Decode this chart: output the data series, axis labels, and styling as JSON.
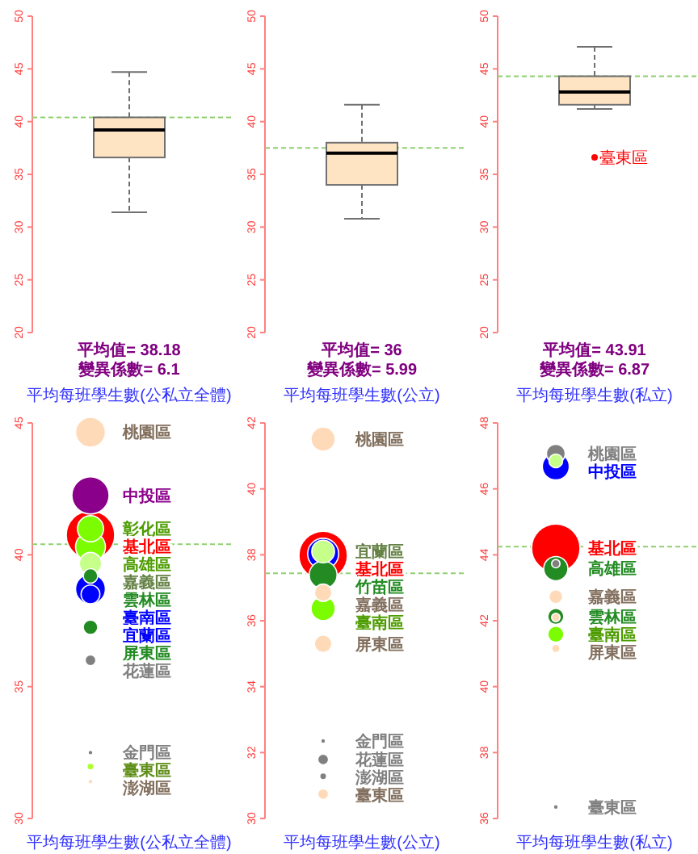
{
  "chart_data": [
    {
      "type": "box",
      "categories": [
        null
      ],
      "series": [
        {
          "color": "#ffe4c4",
          "boxes": [
            {
              "low": 31.4,
              "q1": 36.6,
              "median": 39.2,
              "q3": 40.4,
              "high": 44.7
            }
          ]
        }
      ],
      "ylim": [
        20,
        50
      ],
      "yticks": [
        20,
        25,
        30,
        35,
        40,
        45,
        50
      ],
      "ref_lines": [
        {
          "axis": "y",
          "value": 40.4,
          "color": "#90d070",
          "line_style": "dashed"
        }
      ],
      "annotations": [
        "平均值= 38.18",
        "變異係數= 6.1"
      ],
      "xlabel": "平均每班學生數(公私立全體)"
    },
    {
      "type": "box",
      "categories": [
        null
      ],
      "series": [
        {
          "color": "#ffe4c4",
          "boxes": [
            {
              "low": 30.8,
              "q1": 34.0,
              "median": 37.0,
              "q3": 38.0,
              "high": 41.6
            }
          ]
        }
      ],
      "ylim": [
        20,
        50
      ],
      "yticks": [
        20,
        25,
        30,
        35,
        40,
        45,
        50
      ],
      "ref_lines": [
        {
          "axis": "y",
          "value": 37.5,
          "color": "#90d070",
          "line_style": "dashed"
        }
      ],
      "annotations": [
        "平均值= 36",
        "變異係數= 5.99"
      ],
      "xlabel": "平均每班學生數(公立)"
    },
    {
      "type": "box",
      "categories": [
        null
      ],
      "series": [
        {
          "color": "#ffe4c4",
          "boxes": [
            {
              "low": 41.2,
              "q1": 41.6,
              "median": 42.8,
              "q3": 44.3,
              "high": 47.1
            }
          ]
        },
        {
          "type": "scatter",
          "name": "臺東區",
          "color": "#ff0000",
          "values": [
            36.6
          ]
        }
      ],
      "ylim": [
        20,
        50
      ],
      "yticks": [
        20,
        25,
        30,
        35,
        40,
        45,
        50
      ],
      "ref_lines": [
        {
          "axis": "y",
          "value": 44.3,
          "color": "#90d070",
          "line_style": "dashed"
        }
      ],
      "annotations": [
        "平均值= 43.91",
        "變異係數= 6.87"
      ],
      "xlabel": "平均每班學生數(私立)"
    },
    {
      "type": "bubble",
      "categories": [
        null
      ],
      "series": [
        {
          "name": "桃園區",
          "color": "#ffdab9",
          "values": [
            44.65
          ],
          "sizes": [
            0.38
          ]
        },
        {
          "name": "中投區",
          "color": "#8b008b",
          "values": [
            42.25
          ],
          "sizes": [
            0.59
          ]
        },
        {
          "name": "彰化區",
          "color": "#7cfc00",
          "values": [
            40.99
          ],
          "sizes": [
            0.29
          ]
        },
        {
          "name": "基北區",
          "color": "#ff0000",
          "values": [
            40.75
          ],
          "sizes": [
            1
          ]
        },
        {
          "name": "高雄區",
          "color": "#7cfc00",
          "values": [
            40.3
          ],
          "sizes": [
            0.38
          ]
        },
        {
          "name": "嘉義區",
          "color": "#c6ff8a",
          "values": [
            39.67
          ],
          "sizes": [
            0.21
          ]
        },
        {
          "name": "雲林區",
          "color": "#228b22",
          "values": [
            39.2
          ],
          "sizes": [
            0.09
          ]
        },
        {
          "name": "臺南區",
          "color": "#0000ff",
          "values": [
            38.7
          ],
          "sizes": [
            0.38
          ]
        },
        {
          "name": "宜蘭區",
          "color": "#0000ff",
          "values": [
            38.5
          ],
          "sizes": [
            0.15
          ]
        },
        {
          "name": "屏東區",
          "color": "#228b22",
          "values": [
            37.25
          ],
          "sizes": [
            0.09
          ]
        },
        {
          "name": "花蓮區",
          "color": "#808080",
          "values": [
            36.0
          ],
          "sizes": [
            0.05
          ]
        },
        {
          "name": "金門區",
          "color": "#808080",
          "values": [
            32.5
          ],
          "sizes": [
            0.01
          ]
        },
        {
          "name": "臺東區",
          "color": "#adff2f",
          "values": [
            31.97
          ],
          "sizes": [
            0.02
          ]
        },
        {
          "name": "澎湖區",
          "color": "#ffdab9",
          "values": [
            31.4
          ],
          "sizes": [
            0.01
          ]
        }
      ],
      "ylim": [
        30,
        45
      ],
      "yticks": [
        30,
        35,
        40,
        45
      ],
      "ref_lines": [
        {
          "axis": "y",
          "value": 40.4,
          "color": "#90d070",
          "line_style": "dashed"
        }
      ],
      "xlabel": "平均每班學生數(公私立全體)"
    },
    {
      "type": "bubble",
      "categories": [
        null
      ],
      "series": [
        {
          "name": "桃園區",
          "color": "#ffdab9",
          "values": [
            41.51
          ],
          "sizes": [
            0.25
          ]
        },
        {
          "name": "基北區",
          "color": "#ff0000",
          "values": [
            37.98
          ],
          "sizes": [
            1
          ]
        },
        {
          "color": "#0000ff",
          "values": [
            38.03
          ],
          "sizes": [
            0.41
          ]
        },
        {
          "name": "宜蘭區",
          "color": "#c6ff8a",
          "values": [
            38.1
          ],
          "sizes": [
            0.22
          ]
        },
        {
          "name": "竹苗區",
          "color": "#228b22",
          "values": [
            37.39
          ],
          "sizes": [
            0.33
          ]
        },
        {
          "name": "嘉義區",
          "color": "#ffdab9",
          "values": [
            36.85
          ],
          "sizes": [
            0.13
          ]
        },
        {
          "name": "臺南區",
          "color": "#7cfc00",
          "values": [
            36.37
          ],
          "sizes": [
            0.25
          ]
        },
        {
          "name": "屏東區",
          "color": "#ffdab9",
          "values": [
            35.3
          ],
          "sizes": [
            0.13
          ]
        },
        {
          "name": "金門區",
          "color": "#808080",
          "values": [
            32.35
          ],
          "sizes": [
            0.01
          ]
        },
        {
          "name": "花蓮區",
          "color": "#808080",
          "values": [
            31.79
          ],
          "sizes": [
            0.05
          ]
        },
        {
          "name": "澎湖區",
          "color": "#808080",
          "values": [
            31.28
          ],
          "sizes": [
            0.02
          ]
        },
        {
          "name": "臺東區",
          "color": "#ffdab9",
          "values": [
            30.74
          ],
          "sizes": [
            0.05
          ]
        }
      ],
      "ylim": [
        30,
        42
      ],
      "yticks": [
        30,
        32,
        34,
        36,
        38,
        40,
        42
      ],
      "ref_lines": [
        {
          "axis": "y",
          "value": 37.44,
          "color": "#90d070",
          "line_style": "dashed"
        }
      ],
      "xlabel": "平均每班學生數(公立)"
    },
    {
      "type": "bubble",
      "categories": [
        null
      ],
      "series": [
        {
          "name": "桃園區",
          "color": "#808080",
          "values": [
            47.07
          ],
          "sizes": [
            0.15
          ]
        },
        {
          "name": "中投區",
          "color": "#0000ff",
          "values": [
            46.68
          ],
          "sizes": [
            0.31
          ]
        },
        {
          "color": "#c6ff8a",
          "values": [
            46.85
          ],
          "sizes": [
            0.08
          ]
        },
        {
          "name": "基北區",
          "color": "#ff0000",
          "values": [
            44.2
          ],
          "sizes": [
            1
          ]
        },
        {
          "name": "高雄區",
          "color": "#228b22",
          "values": [
            43.58
          ],
          "sizes": [
            0.25
          ]
        },
        {
          "color": "#808080",
          "values": [
            43.73
          ],
          "sizes": [
            0.03
          ]
        },
        {
          "name": "嘉義區",
          "color": "#ffdab9",
          "values": [
            42.73
          ],
          "sizes": [
            0.08
          ]
        },
        {
          "name": "雲林區",
          "color": "#228b22",
          "values": [
            42.13
          ],
          "sizes": [
            0.11
          ]
        },
        {
          "color": "#ffdab9",
          "values": [
            42.1
          ],
          "sizes": [
            0.03
          ]
        },
        {
          "name": "臺南區",
          "color": "#7cfc00",
          "values": [
            41.59
          ],
          "sizes": [
            0.11
          ]
        },
        {
          "name": "屏東區",
          "color": "#ffdab9",
          "values": [
            41.16
          ],
          "sizes": [
            0.03
          ]
        },
        {
          "name": "臺東區",
          "color": "#808080",
          "values": [
            36.35
          ],
          "sizes": [
            0.01
          ]
        }
      ],
      "ylim": [
        36,
        48
      ],
      "yticks": [
        36,
        38,
        40,
        42,
        44,
        46,
        48
      ],
      "ref_lines": [
        {
          "axis": "y",
          "value": 44.25,
          "color": "#90d070",
          "line_style": "dashed"
        }
      ],
      "xlabel": "平均每班學生數(私立)"
    }
  ]
}
